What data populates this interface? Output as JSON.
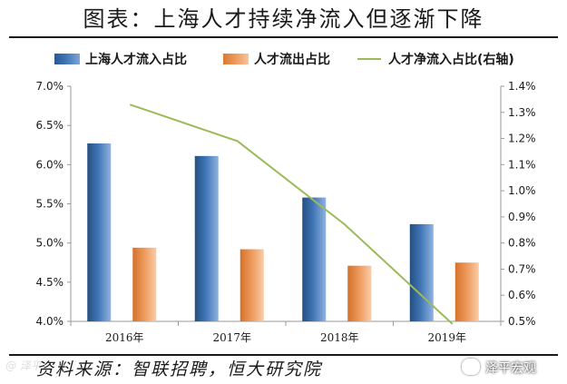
{
  "title": "图表：上海人才持续净流入但逐渐下降",
  "source": "资料来源：智联招聘，恒大研究院",
  "watermark": "泽平宏观",
  "watermark_left": "@ 泽平",
  "colors": {
    "inflow": "#3f74b5",
    "outflow": "#ee9a5d",
    "net": "#9bbb59",
    "axis": "#9a9a9a",
    "text": "#1a1a1a"
  },
  "legend": {
    "inflow": "上海人才流入占比",
    "outflow": "人才流出占比",
    "net": "人才净流入占比(右轴)"
  },
  "chart_data": {
    "type": "bar",
    "categories": [
      "2016年",
      "2017年",
      "2018年",
      "2019年"
    ],
    "series": [
      {
        "name": "上海人才流入占比",
        "type": "bar",
        "axis": "left",
        "values": [
          6.27,
          6.11,
          5.58,
          5.24
        ]
      },
      {
        "name": "人才流出占比",
        "type": "bar",
        "axis": "left",
        "values": [
          4.94,
          4.92,
          4.71,
          4.75
        ]
      },
      {
        "name": "人才净流入占比(右轴)",
        "type": "line",
        "axis": "right",
        "values": [
          1.33,
          1.19,
          0.87,
          0.49
        ]
      }
    ],
    "y_left": {
      "range": [
        4.0,
        7.0
      ],
      "ticks": [
        "4.0%",
        "4.5%",
        "5.0%",
        "5.5%",
        "6.0%",
        "6.5%",
        "7.0%"
      ],
      "tick_values": [
        4.0,
        4.5,
        5.0,
        5.5,
        6.0,
        6.5,
        7.0
      ]
    },
    "y_right": {
      "range": [
        0.5,
        1.4
      ],
      "ticks": [
        "0.5%",
        "0.6%",
        "0.7%",
        "0.8%",
        "0.9%",
        "1.0%",
        "1.1%",
        "1.2%",
        "1.3%",
        "1.4%"
      ],
      "tick_values": [
        0.5,
        0.6,
        0.7,
        0.8,
        0.9,
        1.0,
        1.1,
        1.2,
        1.3,
        1.4
      ]
    },
    "grid": false,
    "legend_position": "top"
  }
}
